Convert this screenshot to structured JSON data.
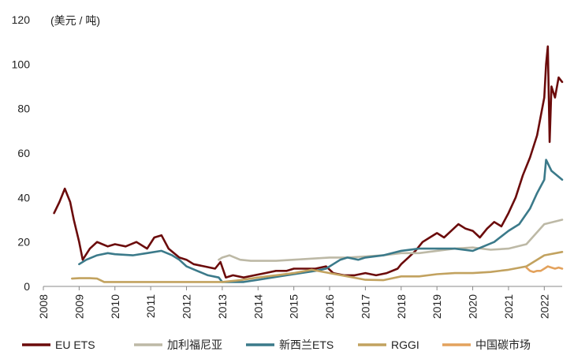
{
  "chart_data": {
    "type": "line",
    "unit_label": "(美元 / 吨)",
    "xlim": [
      2008,
      2022.5
    ],
    "ylim": [
      0,
      120
    ],
    "x_ticks": [
      "2008",
      "2009",
      "2010",
      "2011",
      "2012",
      "2013",
      "2014",
      "2015",
      "2016",
      "2017",
      "2018",
      "2019",
      "2020",
      "2021",
      "2022"
    ],
    "y_ticks": [
      "0",
      "20",
      "40",
      "60",
      "80",
      "100",
      "120"
    ],
    "grid": false,
    "legend_position": "bottom",
    "series": [
      {
        "name": "EU ETS",
        "color": "#6b0b0b",
        "x": [
          2008.3,
          2008.45,
          2008.6,
          2008.75,
          2008.85,
          2009.0,
          2009.1,
          2009.3,
          2009.5,
          2009.8,
          2010.0,
          2010.3,
          2010.6,
          2010.9,
          2011.1,
          2011.3,
          2011.5,
          2011.8,
          2012.0,
          2012.2,
          2012.5,
          2012.8,
          2012.95,
          2013.1,
          2013.3,
          2013.6,
          2013.9,
          2014.2,
          2014.5,
          2014.8,
          2015.0,
          2015.3,
          2015.6,
          2015.9,
          2016.1,
          2016.4,
          2016.7,
          2017.0,
          2017.3,
          2017.6,
          2017.9,
          2018.0,
          2018.2,
          2018.4,
          2018.6,
          2018.8,
          2019.0,
          2019.2,
          2019.4,
          2019.6,
          2019.8,
          2020.0,
          2020.2,
          2020.4,
          2020.6,
          2020.8,
          2021.0,
          2021.2,
          2021.4,
          2021.6,
          2021.8,
          2022.0,
          2022.05,
          2022.1,
          2022.15,
          2022.2,
          2022.3,
          2022.4,
          2022.5
        ],
        "y": [
          33,
          38,
          44,
          38,
          30,
          20,
          12,
          17,
          20,
          18,
          19,
          18,
          20,
          17,
          22,
          23,
          17,
          13,
          12,
          10,
          9,
          8,
          11,
          4,
          5,
          4,
          5,
          6,
          7,
          7,
          8,
          8,
          8,
          9,
          6,
          5,
          5,
          6,
          5,
          6,
          8,
          10,
          13,
          16,
          20,
          22,
          24,
          22,
          25,
          28,
          26,
          25,
          22,
          26,
          29,
          27,
          33,
          40,
          50,
          58,
          68,
          85,
          100,
          108,
          65,
          90,
          85,
          94,
          92
        ]
      },
      {
        "name": "加利福尼亚",
        "color": "#bdb9a6",
        "x": [
          2012.9,
          2013.0,
          2013.2,
          2013.5,
          2013.8,
          2014.0,
          2014.5,
          2015.0,
          2015.5,
          2016.0,
          2016.5,
          2017.0,
          2017.5,
          2018.0,
          2018.5,
          2019.0,
          2019.5,
          2020.0,
          2020.5,
          2021.0,
          2021.5,
          2022.0,
          2022.5
        ],
        "y": [
          12,
          13,
          14,
          12,
          11.5,
          11.5,
          11.5,
          12,
          12.5,
          13,
          13,
          13.5,
          14,
          15,
          15,
          16,
          17,
          17.5,
          16.5,
          17,
          19,
          28,
          30
        ]
      },
      {
        "name": "新西兰ETS",
        "color": "#3b7a8a",
        "x": [
          2009.0,
          2009.2,
          2009.5,
          2009.8,
          2010.0,
          2010.5,
          2010.9,
          2011.3,
          2011.6,
          2011.8,
          2012.0,
          2012.3,
          2012.6,
          2012.9,
          2013.0,
          2013.3,
          2013.6,
          2014.0,
          2014.4,
          2014.8,
          2015.2,
          2015.6,
          2015.9,
          2016.1,
          2016.3,
          2016.5,
          2016.8,
          2017.0,
          2017.5,
          2018.0,
          2018.5,
          2019.0,
          2019.5,
          2020.0,
          2020.3,
          2020.6,
          2021.0,
          2021.3,
          2021.6,
          2021.8,
          2022.0,
          2022.05,
          2022.2,
          2022.5
        ],
        "y": [
          10,
          12,
          14,
          15,
          14.5,
          14,
          15,
          16,
          14,
          12,
          9,
          7,
          5,
          4,
          2,
          2,
          2,
          3,
          4,
          5,
          6,
          7,
          8,
          10,
          12,
          13,
          12,
          13,
          14,
          16,
          17,
          17,
          17,
          16,
          18,
          20,
          25,
          28,
          35,
          42,
          48,
          57,
          52,
          48
        ]
      },
      {
        "name": "RGGI",
        "color": "#c2a25f",
        "x": [
          2008.8,
          2009.0,
          2009.3,
          2009.5,
          2009.7,
          2010.0,
          2010.5,
          2011.0,
          2011.5,
          2012.0,
          2012.5,
          2013.0,
          2013.5,
          2014.0,
          2014.5,
          2015.0,
          2015.5,
          2016.0,
          2016.5,
          2017.0,
          2017.5,
          2018.0,
          2018.5,
          2019.0,
          2019.5,
          2020.0,
          2020.5,
          2021.0,
          2021.5,
          2022.0,
          2022.5
        ],
        "y": [
          3.5,
          3.7,
          3.7,
          3.5,
          2,
          2,
          2,
          2,
          2,
          2,
          2,
          2,
          2.8,
          4,
          5,
          6,
          7.5,
          6,
          4.5,
          3,
          2.8,
          4.5,
          4.5,
          5.5,
          6,
          6,
          6.5,
          7.5,
          9,
          14,
          15.5
        ]
      },
      {
        "name": "中国碳市场",
        "color": "#e3a25d",
        "x": [
          2021.5,
          2021.6,
          2021.7,
          2021.8,
          2021.9,
          2022.0,
          2022.1,
          2022.2,
          2022.3,
          2022.4,
          2022.5
        ],
        "y": [
          8.5,
          7,
          6.5,
          7,
          7,
          8,
          9,
          8.5,
          8,
          8.5,
          8
        ]
      }
    ]
  }
}
